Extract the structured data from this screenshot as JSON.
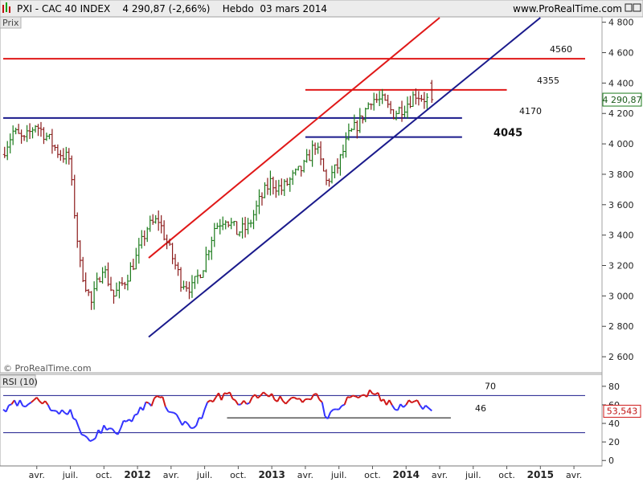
{
  "header": {
    "title": "PXI - CAC 40 INDEX    4 290,87 (-2,66%)    Hebdo  03 mars 2014",
    "site": "www.ProRealTime.com"
  },
  "price_panel": {
    "label": "Prix",
    "watermark": "© ProRealTime.com",
    "last_price_label": "4 290,87"
  },
  "rsi_panel": {
    "label": "RSI (10)",
    "last_value_label": "53,543"
  },
  "colors": {
    "bull_bar": "#1a7a1a",
    "bear_bar": "#8b1a1a",
    "support": "#1a1a8c",
    "resistance": "#e01818",
    "rsi_line": "#3333ff",
    "rsi_overbought_segment": "#d01818"
  },
  "chart_data": [
    {
      "type": "ohlc",
      "series_name": "CAC 40 INDEX",
      "x_tick_labels": [
        "avr.",
        "juil.",
        "oct.",
        "2012",
        "avr.",
        "juil.",
        "oct.",
        "2013",
        "avr.",
        "juil.",
        "oct.",
        "2014",
        "avr.",
        "juil.",
        "oct.",
        "2015",
        "avr."
      ],
      "y_ticks": [
        2600,
        2800,
        3000,
        3200,
        3400,
        3600,
        3800,
        4000,
        4200,
        4400,
        4600,
        4800
      ],
      "y_tick_labels": [
        "2 600",
        "2 800",
        "3 000",
        "3 200",
        "3 400",
        "3 600",
        "3 800",
        "4 000",
        "4 200",
        "4 400",
        "4 600",
        "4 800"
      ],
      "ylim": [
        2500,
        4830
      ],
      "x_range": [
        "2011-01",
        "2015-05"
      ],
      "last_value": 4290.87,
      "price_path": [
        [
          "2011-01",
          3930
        ],
        [
          "2011-02",
          4080
        ],
        [
          "2011-03",
          4020
        ],
        [
          "2011-04",
          4130
        ],
        [
          "2011-05",
          4050
        ],
        [
          "2011-06",
          3950
        ],
        [
          "2011-07",
          3900
        ],
        [
          "2011-08",
          3200
        ],
        [
          "2011-09",
          2950
        ],
        [
          "2011-10",
          3200
        ],
        [
          "2011-11",
          3000
        ],
        [
          "2011-12",
          3100
        ],
        [
          "2012-01",
          3250
        ],
        [
          "2012-02",
          3450
        ],
        [
          "2012-03",
          3500
        ],
        [
          "2012-04",
          3300
        ],
        [
          "2012-05",
          3100
        ],
        [
          "2012-06",
          3050
        ],
        [
          "2012-07",
          3200
        ],
        [
          "2012-08",
          3450
        ],
        [
          "2012-09",
          3520
        ],
        [
          "2012-10",
          3420
        ],
        [
          "2012-11",
          3450
        ],
        [
          "2012-12",
          3620
        ],
        [
          "2013-01",
          3750
        ],
        [
          "2013-02",
          3700
        ],
        [
          "2013-03",
          3780
        ],
        [
          "2013-04",
          3850
        ],
        [
          "2013-05",
          4000
        ],
        [
          "2013-06",
          3750
        ],
        [
          "2013-07",
          3850
        ],
        [
          "2013-08",
          4050
        ],
        [
          "2013-09",
          4150
        ],
        [
          "2013-10",
          4300
        ],
        [
          "2013-11",
          4280
        ],
        [
          "2013-12",
          4200
        ],
        [
          "2014-01",
          4250
        ],
        [
          "2014-02",
          4330
        ],
        [
          "2014-03",
          4290
        ]
      ],
      "horizontal_levels": [
        {
          "label": "4560",
          "value": 4560,
          "color": "resistance",
          "from": "2011-01",
          "to": "2015-05"
        },
        {
          "label": "4355",
          "value": 4355,
          "color": "resistance",
          "from": "2013-04",
          "to": "2014-10"
        },
        {
          "label": "4170",
          "value": 4170,
          "color": "support",
          "from": "2011-01",
          "to": "2014-06"
        },
        {
          "label": "4045",
          "value": 4045,
          "color": "support",
          "from": "2013-04",
          "to": "2014-06"
        }
      ],
      "trendlines": [
        {
          "color": "resistance",
          "from": [
            "2012-02",
            3250
          ],
          "to": [
            "2014-04",
            4830
          ]
        },
        {
          "color": "support",
          "from": [
            "2012-02",
            2730
          ],
          "to": [
            "2015-01",
            4830
          ]
        }
      ]
    },
    {
      "type": "line",
      "series_name": "RSI (10)",
      "y_ticks": [
        0,
        20,
        40,
        60,
        80
      ],
      "y_tick_labels": [
        "0",
        "20",
        "40",
        "60",
        "80"
      ],
      "ylim": [
        -5,
        92
      ],
      "x_range": [
        "2011-01",
        "2015-05"
      ],
      "last_value": 53.543,
      "horizontal_levels": [
        {
          "label": "70",
          "value": 70,
          "color": "support",
          "from": "2011-01",
          "to": "2015-05"
        },
        {
          "label": "46",
          "value": 46,
          "color": "black",
          "from": "2012-09",
          "to": "2014-05"
        },
        {
          "label": "",
          "value": 30,
          "color": "support",
          "from": "2011-01",
          "to": "2015-05"
        }
      ],
      "values_path": [
        [
          "2011-01",
          55
        ],
        [
          "2011-02",
          65
        ],
        [
          "2011-03",
          58
        ],
        [
          "2011-04",
          68
        ],
        [
          "2011-05",
          60
        ],
        [
          "2011-06",
          50
        ],
        [
          "2011-07",
          55
        ],
        [
          "2011-08",
          28
        ],
        [
          "2011-09",
          22
        ],
        [
          "2011-10",
          38
        ],
        [
          "2011-11",
          30
        ],
        [
          "2011-12",
          42
        ],
        [
          "2012-01",
          50
        ],
        [
          "2012-02",
          62
        ],
        [
          "2012-03",
          68
        ],
        [
          "2012-04",
          52
        ],
        [
          "2012-05",
          38
        ],
        [
          "2012-06",
          35
        ],
        [
          "2012-07",
          55
        ],
        [
          "2012-08",
          68
        ],
        [
          "2012-09",
          72
        ],
        [
          "2012-10",
          60
        ],
        [
          "2012-11",
          62
        ],
        [
          "2012-12",
          70
        ],
        [
          "2013-01",
          72
        ],
        [
          "2013-02",
          64
        ],
        [
          "2013-03",
          68
        ],
        [
          "2013-04",
          66
        ],
        [
          "2013-05",
          72
        ],
        [
          "2013-06",
          45
        ],
        [
          "2013-07",
          55
        ],
        [
          "2013-08",
          68
        ],
        [
          "2013-09",
          70
        ],
        [
          "2013-10",
          72
        ],
        [
          "2013-11",
          66
        ],
        [
          "2013-12",
          55
        ],
        [
          "2014-01",
          60
        ],
        [
          "2014-02",
          65
        ],
        [
          "2014-03",
          53.5
        ]
      ]
    }
  ]
}
